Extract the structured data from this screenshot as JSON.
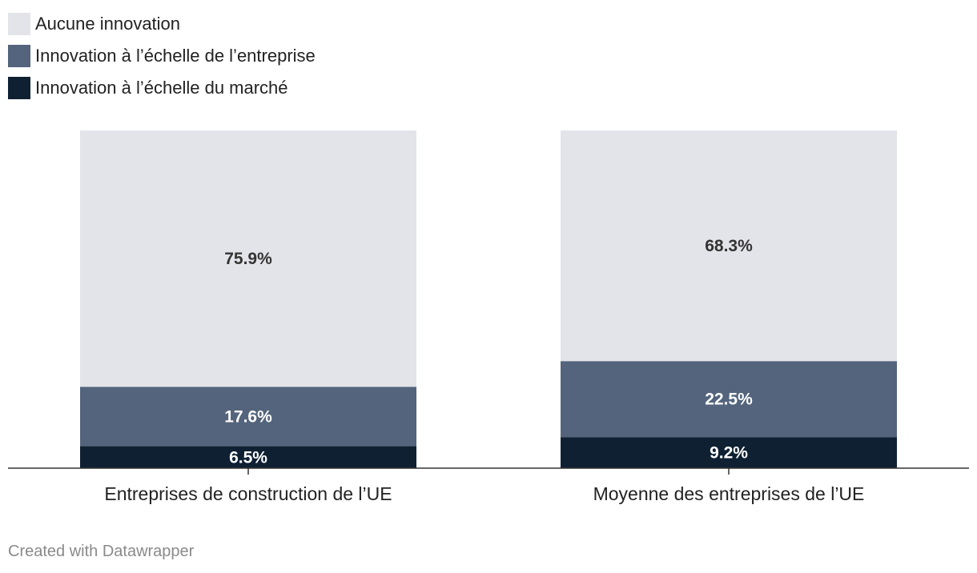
{
  "chart_data": {
    "type": "bar",
    "stacked": true,
    "categories": [
      "Entreprises de construction de l’UE",
      "Moyenne des entreprises de l’UE"
    ],
    "series": [
      {
        "name": "Innovation à l’échelle du marché",
        "values": [
          6.5,
          9.2
        ],
        "labels": [
          "6.5%",
          "9.2%"
        ],
        "color": "#0f2033",
        "label_color": "#ffffff"
      },
      {
        "name": "Innovation à l’échelle de l’entreprise",
        "values": [
          17.6,
          22.5
        ],
        "labels": [
          "17.6%",
          "22.5%"
        ],
        "color": "#53647c",
        "label_color": "#ffffff"
      },
      {
        "name": "Aucune innovation",
        "values": [
          75.9,
          68.3
        ],
        "labels": [
          "75.9%",
          "68.3%"
        ],
        "color": "#e3e4e9",
        "label_color": "#333333"
      }
    ],
    "ylim": [
      0,
      100
    ],
    "legend_position": "top-left",
    "grid": false
  },
  "legend": [
    {
      "label": "Aucune innovation",
      "color": "#e3e4e9"
    },
    {
      "label": "Innovation à l’échelle de l’entreprise",
      "color": "#53647c"
    },
    {
      "label": "Innovation à l’échelle du marché",
      "color": "#0f2033"
    }
  ],
  "credit": "Created with Datawrapper"
}
